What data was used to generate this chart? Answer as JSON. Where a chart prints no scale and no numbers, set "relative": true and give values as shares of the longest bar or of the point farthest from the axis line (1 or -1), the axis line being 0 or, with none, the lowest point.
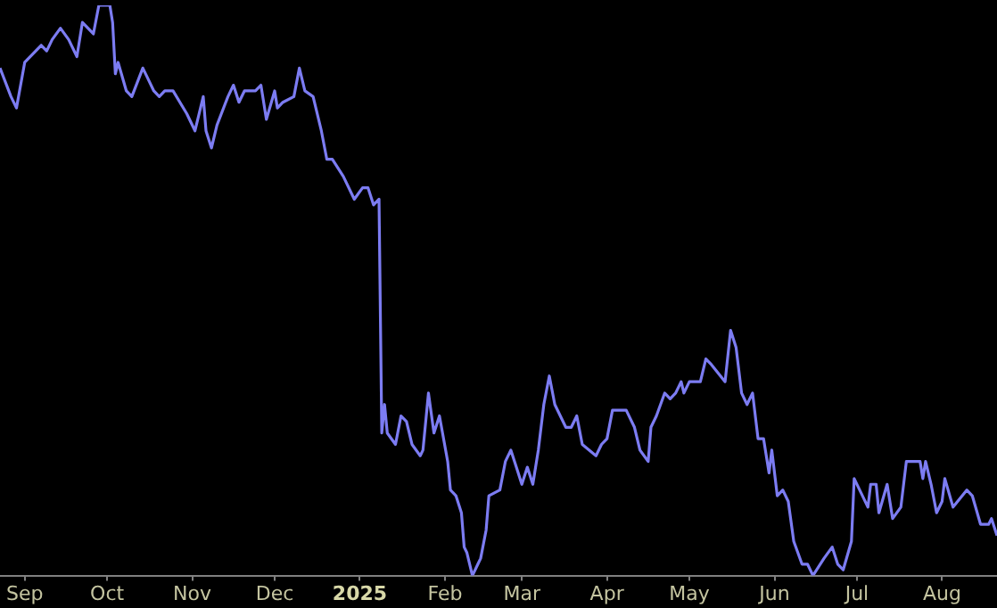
{
  "chart_data": {
    "type": "line",
    "relative": true,
    "legend": false,
    "xlim": [
      "2024-08-23",
      "2025-08-21"
    ],
    "xticks": [
      {
        "value": "2024-09-01",
        "label": "Sep"
      },
      {
        "value": "2024-10-01",
        "label": "Oct"
      },
      {
        "value": "2024-11-01",
        "label": "Nov"
      },
      {
        "value": "2024-12-01",
        "label": "Dec"
      },
      {
        "value": "2025-01-01",
        "label": "2025"
      },
      {
        "value": "2025-02-01",
        "label": "Feb"
      },
      {
        "value": "2025-03-01",
        "label": "Mar"
      },
      {
        "value": "2025-04-01",
        "label": "Apr"
      },
      {
        "value": "2025-05-01",
        "label": "May"
      },
      {
        "value": "2025-06-01",
        "label": "Jun"
      },
      {
        "value": "2025-07-01",
        "label": "Jul"
      },
      {
        "value": "2025-08-01",
        "label": "Aug"
      }
    ],
    "x": [
      "2024-08-23",
      "2024-08-27",
      "2024-08-29",
      "2024-09-01",
      "2024-09-07",
      "2024-09-09",
      "2024-09-11",
      "2024-09-14",
      "2024-09-17",
      "2024-09-20",
      "2024-09-22",
      "2024-09-26",
      "2024-09-28",
      "2024-10-02",
      "2024-10-03",
      "2024-10-04",
      "2024-10-05",
      "2024-10-08",
      "2024-10-10",
      "2024-10-14",
      "2024-10-16",
      "2024-10-18",
      "2024-10-20",
      "2024-10-22",
      "2024-10-25",
      "2024-10-30",
      "2024-11-02",
      "2024-11-05",
      "2024-11-06",
      "2024-11-08",
      "2024-11-10",
      "2024-11-14",
      "2024-11-16",
      "2024-11-18",
      "2024-11-20",
      "2024-11-24",
      "2024-11-26",
      "2024-11-28",
      "2024-12-01",
      "2024-12-02",
      "2024-12-04",
      "2024-12-08",
      "2024-12-10",
      "2024-12-12",
      "2024-12-15",
      "2024-12-18",
      "2024-12-20",
      "2024-12-22",
      "2024-12-26",
      "2024-12-30",
      "2025-01-02",
      "2025-01-04",
      "2025-01-06",
      "2025-01-08",
      "2025-01-09",
      "2025-01-10",
      "2025-01-11",
      "2025-01-14",
      "2025-01-16",
      "2025-01-18",
      "2025-01-20",
      "2025-01-23",
      "2025-01-24",
      "2025-01-26",
      "2025-01-28",
      "2025-01-30",
      "2025-02-02",
      "2025-02-03",
      "2025-02-05",
      "2025-02-07",
      "2025-02-08",
      "2025-02-09",
      "2025-02-11",
      "2025-02-13",
      "2025-02-14",
      "2025-02-16",
      "2025-02-17",
      "2025-02-21",
      "2025-02-23",
      "2025-02-25",
      "2025-02-27",
      "2025-03-01",
      "2025-03-03",
      "2025-03-05",
      "2025-03-07",
      "2025-03-09",
      "2025-03-11",
      "2025-03-13",
      "2025-03-17",
      "2025-03-19",
      "2025-03-21",
      "2025-03-23",
      "2025-03-28",
      "2025-03-30",
      "2025-04-01",
      "2025-04-03",
      "2025-04-08",
      "2025-04-11",
      "2025-04-13",
      "2025-04-16",
      "2025-04-17",
      "2025-04-19",
      "2025-04-22",
      "2025-04-24",
      "2025-04-26",
      "2025-04-28",
      "2025-04-29",
      "2025-05-01",
      "2025-05-05",
      "2025-05-07",
      "2025-05-09",
      "2025-05-14",
      "2025-05-16",
      "2025-05-18",
      "2025-05-20",
      "2025-05-22",
      "2025-05-24",
      "2025-05-26",
      "2025-05-28",
      "2025-05-30",
      "2025-05-31",
      "2025-06-02",
      "2025-06-04",
      "2025-06-06",
      "2025-06-08",
      "2025-06-11",
      "2025-06-13",
      "2025-06-15",
      "2025-06-19",
      "2025-06-22",
      "2025-06-24",
      "2025-06-26",
      "2025-06-29",
      "2025-06-30",
      "2025-07-02",
      "2025-07-05",
      "2025-07-06",
      "2025-07-08",
      "2025-07-09",
      "2025-07-12",
      "2025-07-14",
      "2025-07-17",
      "2025-07-19",
      "2025-07-24",
      "2025-07-25",
      "2025-07-26",
      "2025-07-28",
      "2025-07-30",
      "2025-08-01",
      "2025-08-02",
      "2025-08-05",
      "2025-08-10",
      "2025-08-12",
      "2025-08-15",
      "2025-08-18",
      "2025-08-19",
      "2025-08-21"
    ],
    "series": [
      {
        "color": "#7c7cf2",
        "values": [
          0.89,
          0.84,
          0.82,
          0.9,
          0.93,
          0.92,
          0.94,
          0.96,
          0.94,
          0.91,
          0.97,
          0.95,
          1.0,
          1.0,
          0.97,
          0.88,
          0.9,
          0.85,
          0.84,
          0.89,
          0.87,
          0.85,
          0.84,
          0.85,
          0.85,
          0.81,
          0.78,
          0.84,
          0.78,
          0.75,
          0.79,
          0.84,
          0.86,
          0.83,
          0.85,
          0.85,
          0.86,
          0.8,
          0.85,
          0.82,
          0.83,
          0.84,
          0.89,
          0.85,
          0.84,
          0.78,
          0.73,
          0.73,
          0.7,
          0.66,
          0.68,
          0.68,
          0.65,
          0.66,
          0.25,
          0.3,
          0.25,
          0.23,
          0.28,
          0.27,
          0.23,
          0.21,
          0.22,
          0.32,
          0.25,
          0.28,
          0.2,
          0.15,
          0.14,
          0.11,
          0.05,
          0.04,
          0.0,
          0.02,
          0.03,
          0.08,
          0.14,
          0.15,
          0.2,
          0.22,
          0.19,
          0.16,
          0.19,
          0.16,
          0.22,
          0.3,
          0.35,
          0.3,
          0.26,
          0.26,
          0.28,
          0.23,
          0.21,
          0.23,
          0.24,
          0.29,
          0.29,
          0.26,
          0.22,
          0.2,
          0.26,
          0.28,
          0.32,
          0.31,
          0.32,
          0.34,
          0.32,
          0.34,
          0.34,
          0.38,
          0.37,
          0.34,
          0.43,
          0.4,
          0.32,
          0.3,
          0.32,
          0.24,
          0.24,
          0.18,
          0.22,
          0.14,
          0.15,
          0.13,
          0.06,
          0.02,
          0.02,
          0.0,
          0.03,
          0.05,
          0.02,
          0.01,
          0.06,
          0.17,
          0.15,
          0.12,
          0.16,
          0.16,
          0.11,
          0.16,
          0.1,
          0.12,
          0.2,
          0.2,
          0.17,
          0.2,
          0.16,
          0.11,
          0.13,
          0.17,
          0.12,
          0.15,
          0.14,
          0.09,
          0.09,
          0.1,
          0.07
        ]
      }
    ]
  }
}
